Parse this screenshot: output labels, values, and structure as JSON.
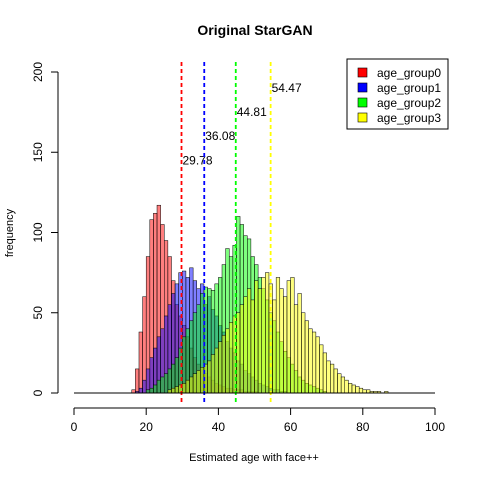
{
  "chart_data": {
    "type": "histogram",
    "title": "Original StarGAN",
    "xlabel": "Estimated age with face++",
    "ylabel": "frequency",
    "xlim": [
      0,
      100
    ],
    "ylim": [
      0,
      200
    ],
    "xticks": [
      0,
      20,
      40,
      60,
      80,
      100
    ],
    "yticks": [
      0,
      50,
      100,
      150,
      200
    ],
    "bin_width": 1,
    "legend_position": "top-right",
    "series": [
      {
        "name": "age_group0",
        "color": "#ff0000",
        "mean": 29.78,
        "bins_start": 16,
        "counts": [
          2,
          15,
          38,
          60,
          85,
          108,
          112,
          117,
          105,
          95,
          85,
          70,
          55,
          48,
          42,
          35,
          28,
          22,
          18,
          15,
          12,
          10,
          8,
          6,
          5,
          4,
          3,
          3,
          2,
          2,
          2,
          1,
          1,
          1,
          1
        ]
      },
      {
        "name": "age_group1",
        "color": "#0000ff",
        "mean": 36.08,
        "bins_start": 17,
        "counts": [
          1,
          3,
          8,
          15,
          22,
          28,
          35,
          40,
          48,
          55,
          62,
          68,
          75,
          76,
          72,
          78,
          70,
          65,
          68,
          55,
          60,
          52,
          48,
          42,
          38,
          32,
          28,
          25,
          20,
          18,
          14,
          12,
          10,
          8,
          6,
          5,
          4,
          3,
          2,
          2,
          1,
          1
        ]
      },
      {
        "name": "age_group2",
        "color": "#00ff00",
        "mean": 44.81,
        "bins_start": 20,
        "counts": [
          2,
          3,
          5,
          8,
          10,
          12,
          15,
          18,
          22,
          28,
          35,
          40,
          45,
          50,
          55,
          62,
          66,
          65,
          64,
          68,
          72,
          80,
          90,
          85,
          92,
          110,
          105,
          98,
          96,
          85,
          80,
          72,
          65,
          58,
          50,
          45,
          38,
          32,
          26,
          22,
          18,
          14,
          10,
          8,
          6,
          5,
          4,
          3,
          2,
          1
        ]
      },
      {
        "name": "age_group3",
        "color": "#ffff00",
        "mean": 54.47,
        "bins_start": 26,
        "counts": [
          2,
          3,
          4,
          5,
          6,
          8,
          10,
          12,
          14,
          16,
          18,
          20,
          24,
          28,
          32,
          36,
          40,
          44,
          48,
          50,
          55,
          60,
          65,
          58,
          70,
          65,
          72,
          75,
          68,
          58,
          72,
          65,
          60,
          70,
          72,
          55,
          62,
          50,
          45,
          40,
          38,
          35,
          30,
          25,
          20,
          18,
          15,
          12,
          10,
          8,
          6,
          5,
          4,
          3,
          2,
          2,
          1,
          1,
          1,
          0,
          1
        ]
      }
    ]
  }
}
